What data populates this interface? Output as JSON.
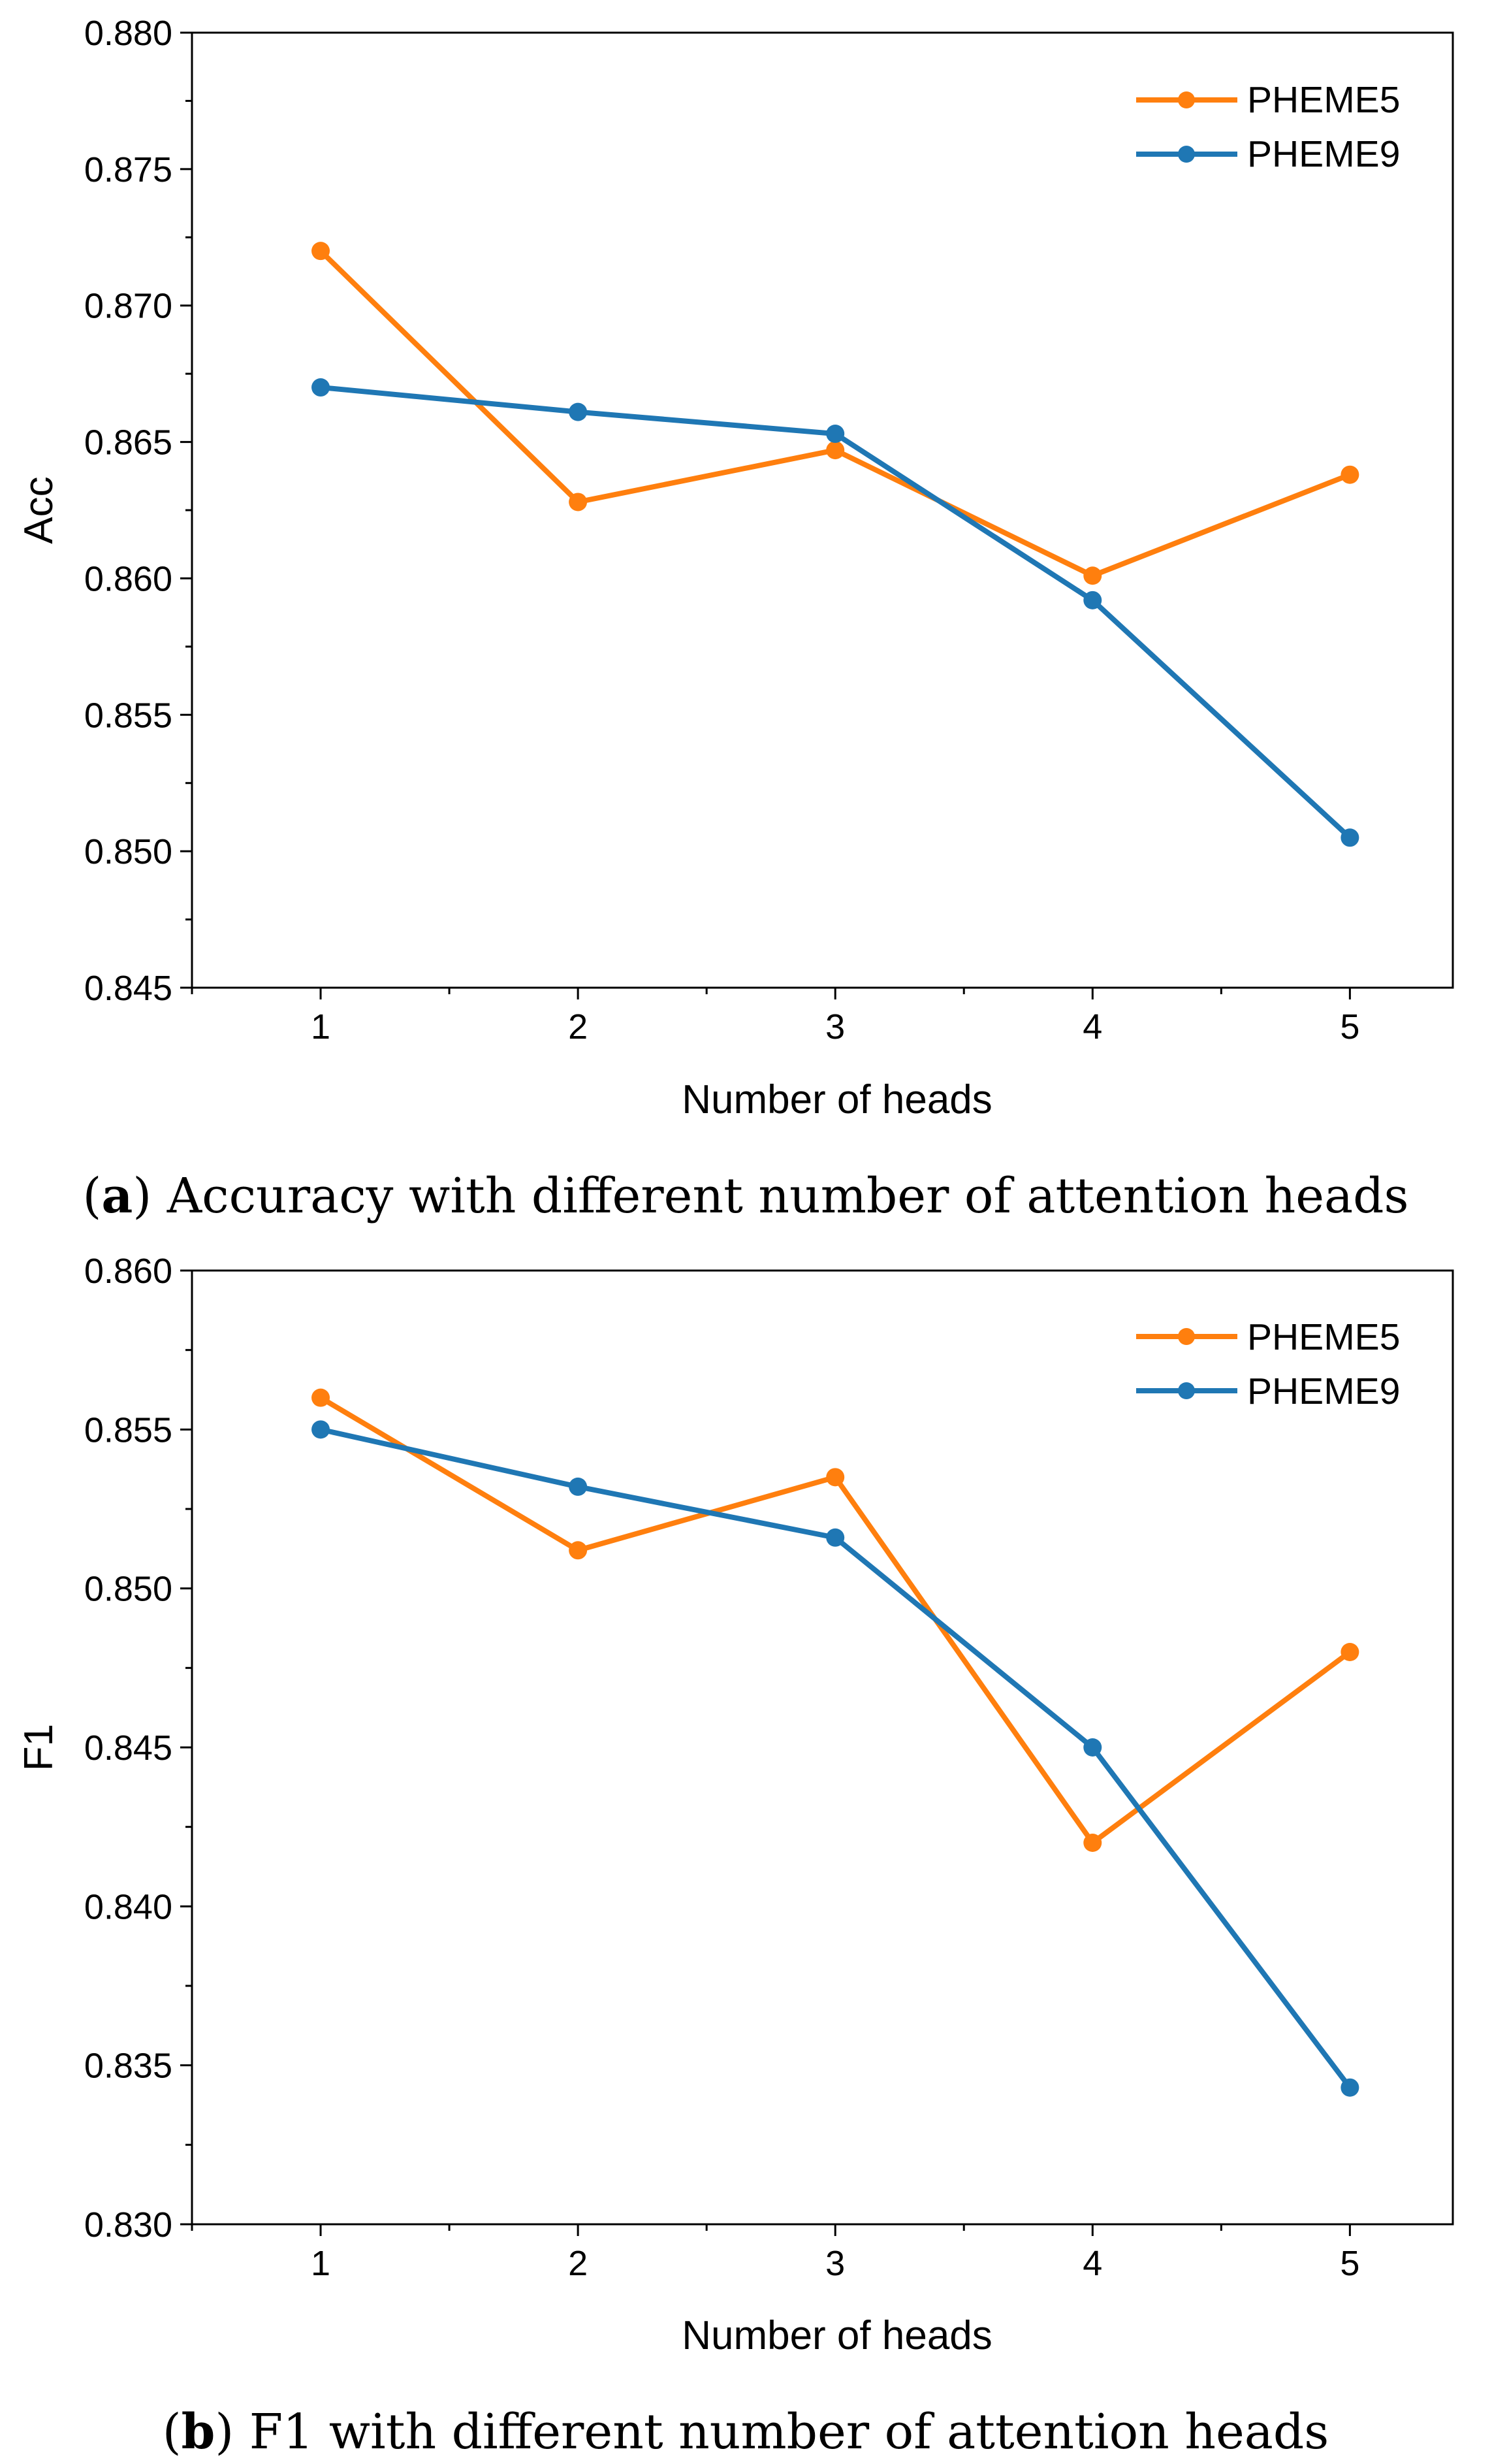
{
  "colors": {
    "pheme5": "#ff7f0e",
    "pheme9": "#1f77b4",
    "axis": "#000000"
  },
  "chart_data": [
    {
      "type": "line",
      "title": "",
      "caption_label": "a",
      "caption_text": "Accuracy with different number of attention heads",
      "xlabel": "Number of heads",
      "ylabel": "Acc",
      "x": [
        1,
        2,
        3,
        4,
        5
      ],
      "xticks": [
        "1",
        "2",
        "3",
        "4",
        "5"
      ],
      "xlim": [
        0.5,
        5.4
      ],
      "ylim": [
        0.845,
        0.88
      ],
      "yticks": [
        "0.845",
        "0.850",
        "0.855",
        "0.860",
        "0.865",
        "0.870",
        "0.875",
        "0.880"
      ],
      "grid": false,
      "legend_position": "top-right",
      "series": [
        {
          "name": "PHEME5",
          "color": "#ff7f0e",
          "values": [
            0.872,
            0.8628,
            0.8647,
            0.8601,
            0.8638
          ]
        },
        {
          "name": "PHEME9",
          "color": "#1f77b4",
          "values": [
            0.867,
            0.8661,
            0.8653,
            0.8592,
            0.8505
          ]
        }
      ]
    },
    {
      "type": "line",
      "title": "",
      "caption_label": "b",
      "caption_text": "F1 with different number of attention heads",
      "xlabel": "Number of heads",
      "ylabel": "F1",
      "x": [
        1,
        2,
        3,
        4,
        5
      ],
      "xticks": [
        "1",
        "2",
        "3",
        "4",
        "5"
      ],
      "xlim": [
        0.5,
        5.4
      ],
      "ylim": [
        0.83,
        0.86
      ],
      "yticks": [
        "0.830",
        "0.835",
        "0.840",
        "0.845",
        "0.850",
        "0.855",
        "0.860"
      ],
      "grid": false,
      "legend_position": "top-right",
      "series": [
        {
          "name": "PHEME5",
          "color": "#ff7f0e",
          "values": [
            0.856,
            0.8512,
            0.8535,
            0.842,
            0.848
          ]
        },
        {
          "name": "PHEME9",
          "color": "#1f77b4",
          "values": [
            0.855,
            0.8532,
            0.8516,
            0.845,
            0.8343
          ]
        }
      ]
    }
  ]
}
